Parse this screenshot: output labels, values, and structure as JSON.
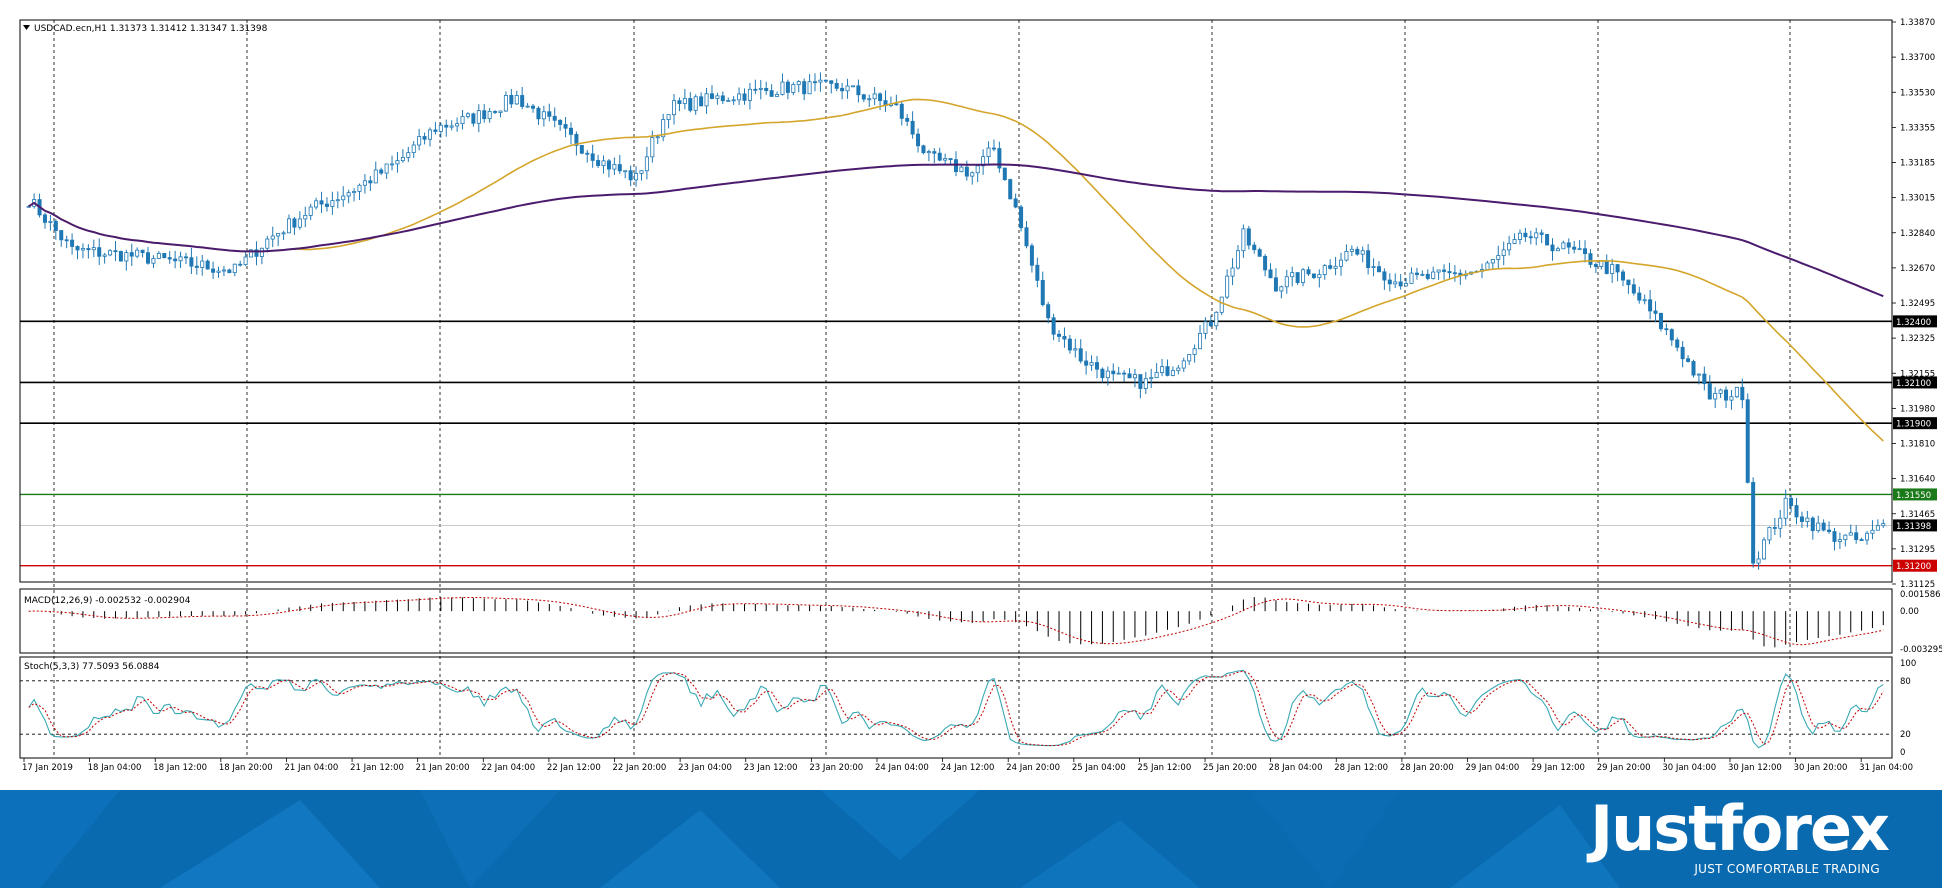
{
  "chart_data": {
    "type": "candlestick",
    "symbol_header": "USDCAD.ecn,H1  1.31373 1.31412 1.31347 1.31398",
    "ylim": [
      1.3112,
      1.3388
    ],
    "y_ticks": [
      "1.33870",
      "1.33700",
      "1.33530",
      "1.33355",
      "1.33185",
      "1.33015",
      "1.32840",
      "1.32670",
      "1.32495",
      "1.32325",
      "1.32155",
      "1.31980",
      "1.31810",
      "1.31640",
      "1.31465",
      "1.31295",
      "1.31125"
    ],
    "x_labels": [
      "17 Jan 2019",
      "18 Jan 04:00",
      "18 Jan 12:00",
      "18 Jan 20:00",
      "21 Jan 04:00",
      "21 Jan 12:00",
      "21 Jan 20:00",
      "22 Jan 04:00",
      "22 Jan 12:00",
      "22 Jan 20:00",
      "23 Jan 04:00",
      "23 Jan 12:00",
      "23 Jan 20:00",
      "24 Jan 04:00",
      "24 Jan 12:00",
      "24 Jan 20:00",
      "25 Jan 04:00",
      "25 Jan 12:00",
      "25 Jan 20:00",
      "28 Jan 04:00",
      "28 Jan 12:00",
      "28 Jan 20:00",
      "29 Jan 04:00",
      "29 Jan 12:00",
      "29 Jan 20:00",
      "30 Jan 04:00",
      "30 Jan 12:00",
      "30 Jan 20:00",
      "31 Jan 04:00"
    ],
    "anchors": [
      [
        0,
        1.33
      ],
      [
        8,
        1.3275
      ],
      [
        20,
        1.3272
      ],
      [
        30,
        1.3268
      ],
      [
        38,
        1.3265
      ],
      [
        44,
        1.328
      ],
      [
        52,
        1.3295
      ],
      [
        60,
        1.3305
      ],
      [
        68,
        1.3318
      ],
      [
        75,
        1.3335
      ],
      [
        82,
        1.334
      ],
      [
        90,
        1.335
      ],
      [
        100,
        1.333
      ],
      [
        106,
        1.3318
      ],
      [
        112,
        1.331
      ],
      [
        118,
        1.3345
      ],
      [
        128,
        1.335
      ],
      [
        140,
        1.3355
      ],
      [
        150,
        1.3355
      ],
      [
        160,
        1.3345
      ],
      [
        166,
        1.332
      ],
      [
        174,
        1.3313
      ],
      [
        178,
        1.3325
      ],
      [
        182,
        1.3295
      ],
      [
        188,
        1.324
      ],
      [
        194,
        1.3222
      ],
      [
        200,
        1.3212
      ],
      [
        206,
        1.321
      ],
      [
        212,
        1.322
      ],
      [
        218,
        1.324
      ],
      [
        224,
        1.3282
      ],
      [
        230,
        1.3258
      ],
      [
        238,
        1.3265
      ],
      [
        244,
        1.3275
      ],
      [
        252,
        1.326
      ],
      [
        260,
        1.3262
      ],
      [
        268,
        1.3265
      ],
      [
        276,
        1.3282
      ],
      [
        284,
        1.3275
      ],
      [
        292,
        1.3265
      ],
      [
        298,
        1.3248
      ],
      [
        304,
        1.3228
      ],
      [
        310,
        1.3203
      ],
      [
        316,
        1.3205
      ],
      [
        318,
        1.3122
      ],
      [
        324,
        1.315
      ],
      [
        332,
        1.3135
      ],
      [
        338,
        1.3132
      ],
      [
        342,
        1.314
      ]
    ],
    "num_bars": 343,
    "levels": [
      {
        "price": 1.324,
        "label": "1.32400",
        "color": "#000000"
      },
      {
        "price": 1.321,
        "label": "1.32100",
        "color": "#000000"
      },
      {
        "price": 1.319,
        "label": "1.31900",
        "color": "#000000"
      },
      {
        "price": 1.3155,
        "label": "1.31550",
        "color": "#1a7a1a"
      },
      {
        "price": 1.312,
        "label": "1.31200",
        "color": "#cc0000"
      }
    ],
    "current_price": {
      "price": 1.31398,
      "label": "1.31398"
    },
    "colors": {
      "candle": "#1f78b4",
      "ma_fast": "#d4a52a",
      "ma_slow": "#4b1b6e",
      "grid": "#000000",
      "macd_signal": "#c00000",
      "stoch_main": "#3aa9b5",
      "stoch_signal": "#c00000"
    },
    "macd": {
      "label": "MACD(12,26,9) -0.002532 -0.002904",
      "ticks": [
        "0.001586",
        "0.00",
        "-0.003295"
      ],
      "ylim": [
        -0.0034,
        0.0018
      ]
    },
    "stoch": {
      "label": "Stoch(5,3,3) 77.5093 56.0884",
      "ticks": [
        "100",
        "80",
        "20",
        "0"
      ],
      "levels": [
        80,
        20
      ]
    }
  },
  "branding": {
    "name": "Justforex",
    "tagline": "JUST COMFORTABLE TRADING"
  }
}
